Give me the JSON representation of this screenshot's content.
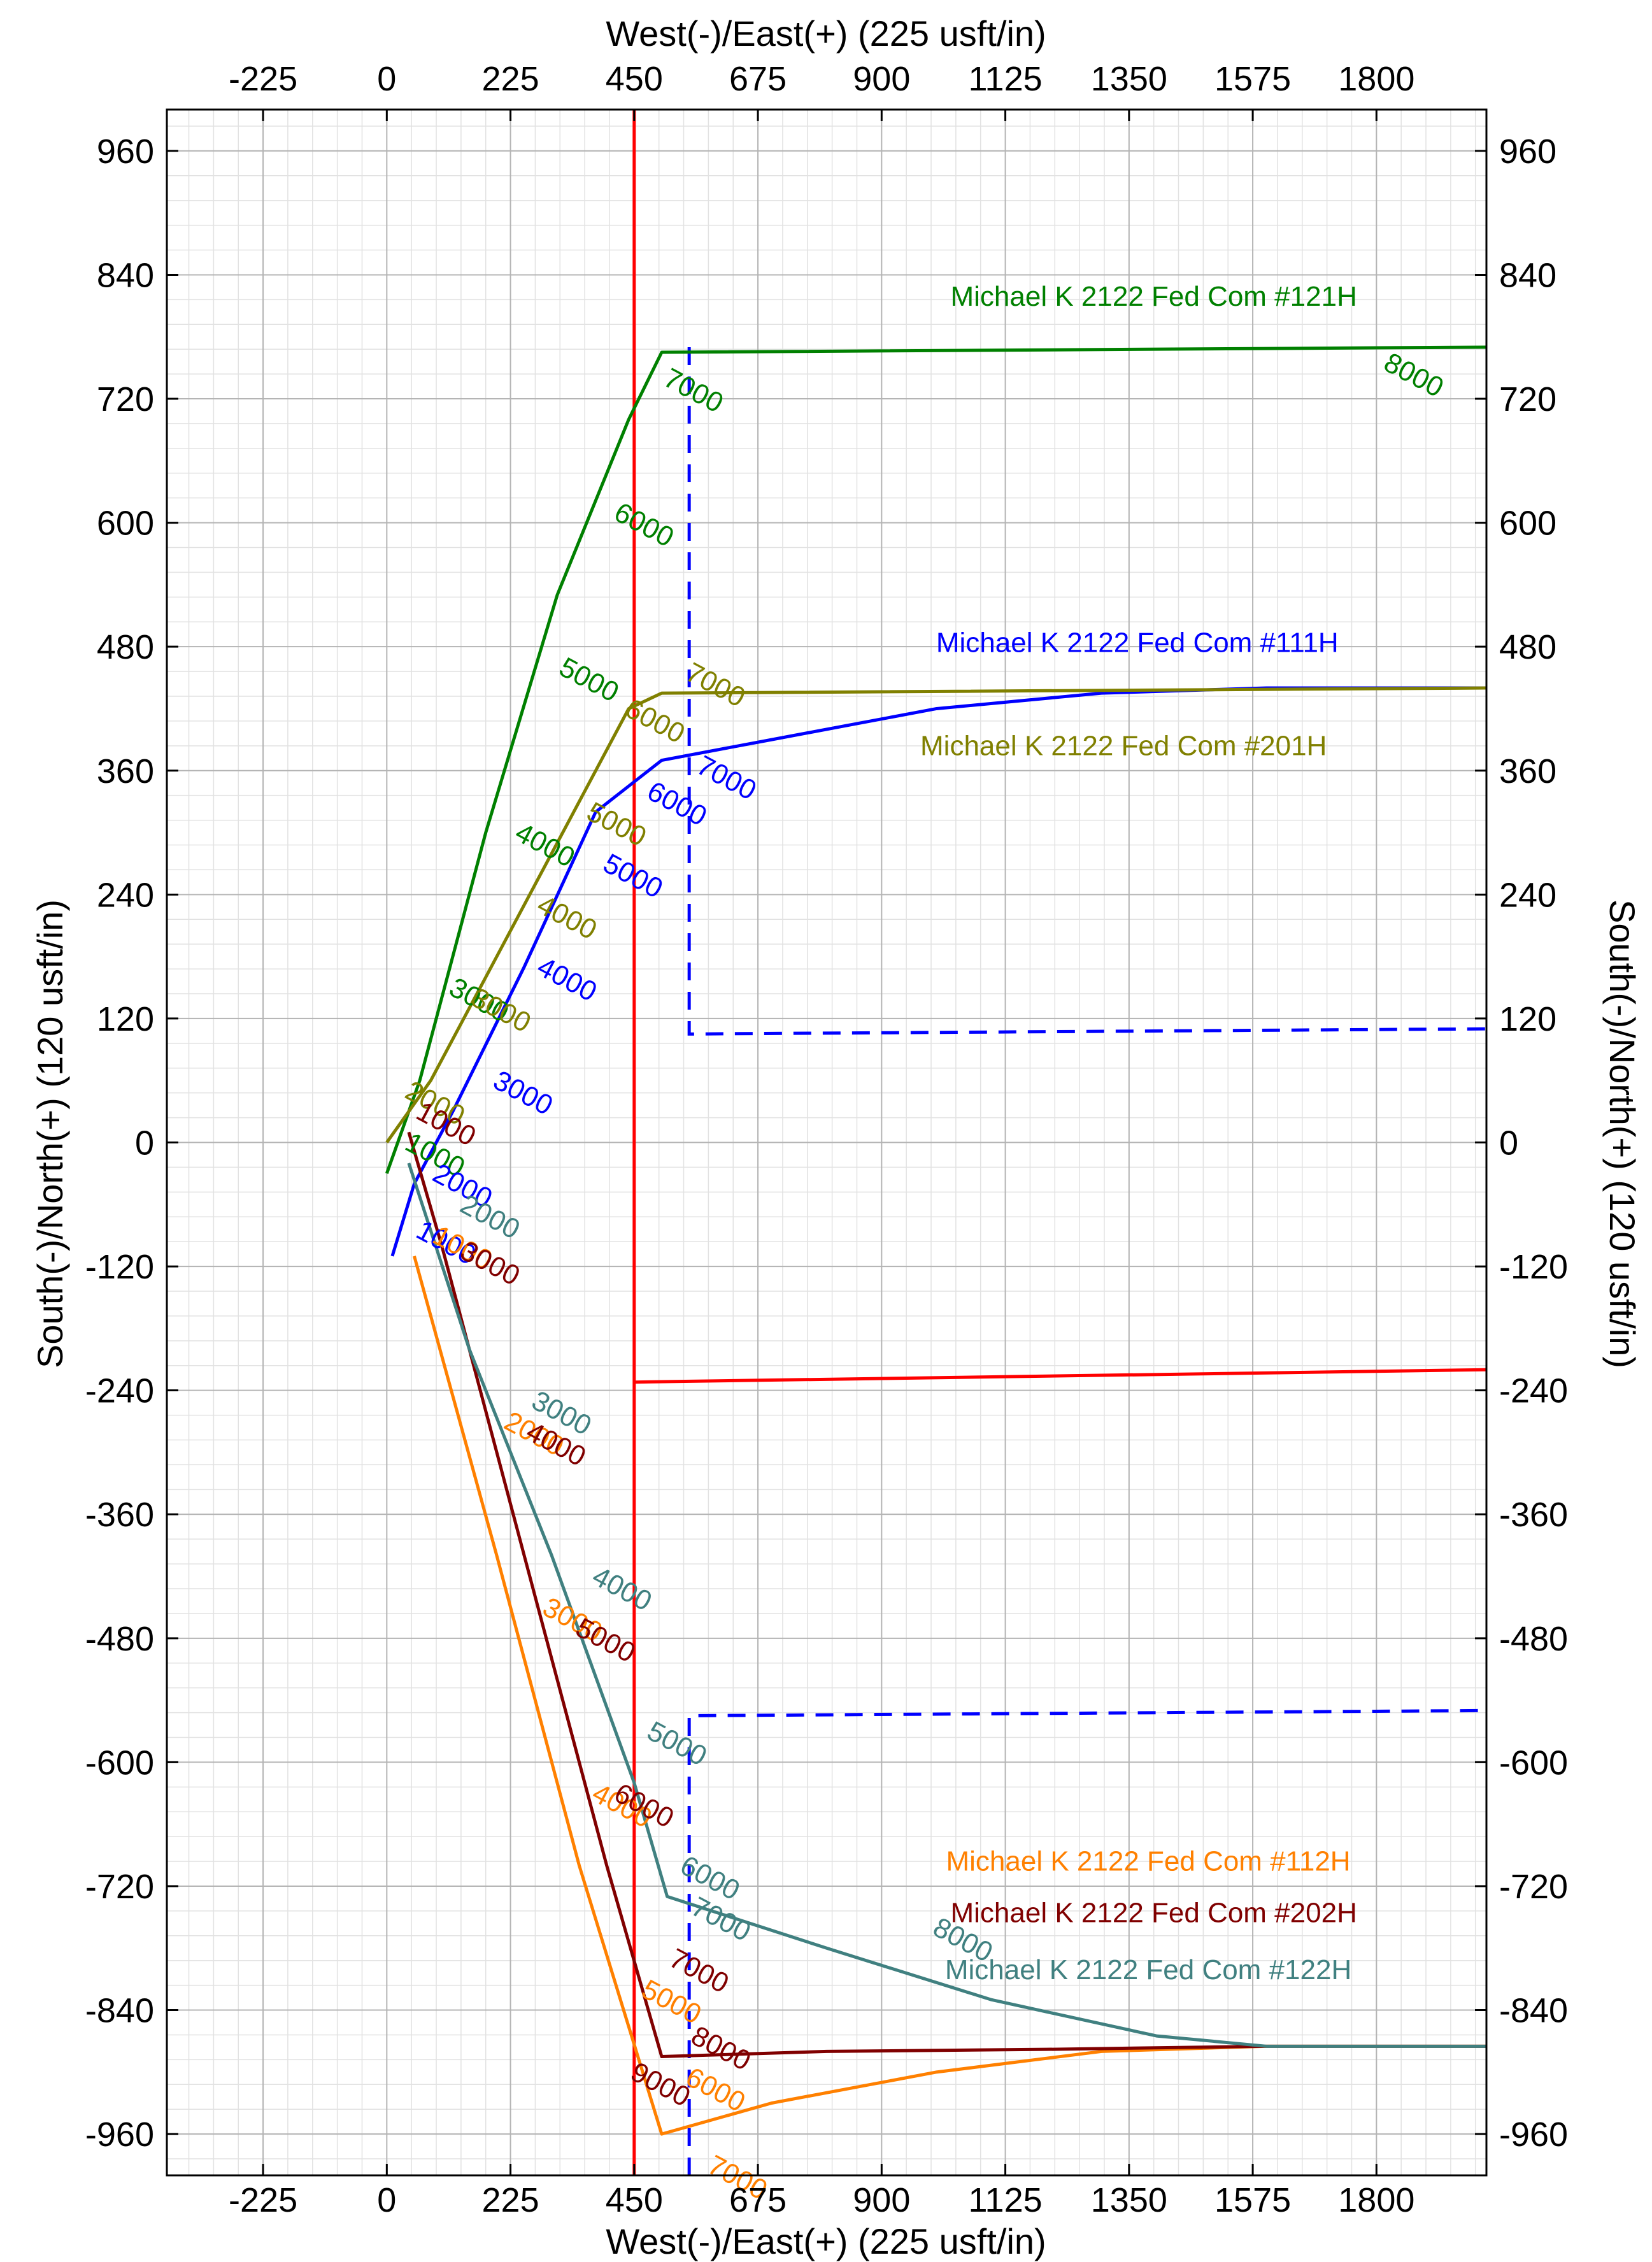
{
  "chart_data": {
    "type": "line",
    "title": "",
    "xlabel_top": "West(-)/East(+) (225 usft/in)",
    "xlabel_bottom": "West(-)/East(+) (225 usft/in)",
    "ylabel_left": "South(-)/North(+) (120 usft/in)",
    "ylabel_right": "South(-)/North(+) (120 usft/in)",
    "xlim": [
      -400,
      2000
    ],
    "ylim": [
      -1000,
      1000
    ],
    "x_ticks": [
      -225,
      0,
      225,
      450,
      675,
      900,
      1125,
      1350,
      1575,
      1800
    ],
    "y_ticks": [
      960,
      840,
      720,
      600,
      480,
      360,
      240,
      120,
      0,
      -120,
      -240,
      -360,
      -480,
      -600,
      -720,
      -840,
      -960
    ],
    "x_tick_labels": [
      "-225",
      "0",
      "225",
      "450",
      "675",
      "900",
      "1125",
      "1350",
      "1575",
      "1800"
    ],
    "y_tick_labels": [
      "960",
      "840",
      "720",
      "600",
      "480",
      "360",
      "240",
      "120",
      "0",
      "-120",
      "-240",
      "-360",
      "-480",
      "-600",
      "-720",
      "-840",
      "-960"
    ],
    "grid": true,
    "series": [
      {
        "name": "Michael K 2122 Fed Com #121H",
        "color": "#008000",
        "x": [
          0,
          20,
          60,
          180,
          310,
          440,
          500,
          2000
        ],
        "y": [
          -30,
          0,
          60,
          300,
          530,
          700,
          765,
          770
        ],
        "md_labels": [
          {
            "text": "1000",
            "x": 80,
            "y": -20
          },
          {
            "text": "3000",
            "x": 160,
            "y": 130
          },
          {
            "text": "4000",
            "x": 280,
            "y": 280
          },
          {
            "text": "5000",
            "x": 360,
            "y": 440
          },
          {
            "text": "6000",
            "x": 460,
            "y": 590
          },
          {
            "text": "7000",
            "x": 550,
            "y": 720
          },
          {
            "text": "8000",
            "x": 1860,
            "y": 735
          }
        ]
      },
      {
        "name": "Michael K 2122 Fed Com #111H",
        "color": "#0000ff",
        "x": [
          10,
          50,
          120,
          250,
          380,
          500,
          700,
          1000,
          1300,
          1600,
          2000
        ],
        "y": [
          -110,
          -40,
          30,
          170,
          320,
          370,
          390,
          420,
          435,
          440,
          440
        ],
        "md_labels": [
          {
            "text": "1000",
            "x": 100,
            "y": -105
          },
          {
            "text": "2000",
            "x": 130,
            "y": -50
          },
          {
            "text": "3000",
            "x": 240,
            "y": 40
          },
          {
            "text": "4000",
            "x": 320,
            "y": 150
          },
          {
            "text": "5000",
            "x": 440,
            "y": 250
          },
          {
            "text": "6000",
            "x": 520,
            "y": 320
          },
          {
            "text": "7000",
            "x": 610,
            "y": 345
          }
        ]
      },
      {
        "name": "Michael K 2122 Fed Com #201H",
        "color": "#808000",
        "x": [
          0,
          80,
          200,
          320,
          440,
          500,
          2000
        ],
        "y": [
          0,
          60,
          180,
          300,
          420,
          435,
          440
        ],
        "md_labels": [
          {
            "text": "2000",
            "x": 80,
            "y": 30
          },
          {
            "text": "3000",
            "x": 200,
            "y": 120
          },
          {
            "text": "4000",
            "x": 320,
            "y": 210
          },
          {
            "text": "5000",
            "x": 410,
            "y": 300
          },
          {
            "text": "6000",
            "x": 480,
            "y": 400
          },
          {
            "text": "7000",
            "x": 590,
            "y": 435
          }
        ]
      },
      {
        "name": "Michael K 2122 Fed Com #112H",
        "color": "#ff8000",
        "x": [
          50,
          200,
          350,
          500,
          700,
          1000,
          1300,
          1600,
          2000
        ],
        "y": [
          -110,
          -400,
          -700,
          -960,
          -930,
          -900,
          -880,
          -875,
          -875
        ],
        "md_labels": [
          {
            "text": "1000",
            "x": 130,
            "y": -110
          },
          {
            "text": "2000",
            "x": 260,
            "y": -290
          },
          {
            "text": "3000",
            "x": 330,
            "y": -470
          },
          {
            "text": "4000",
            "x": 420,
            "y": -650
          },
          {
            "text": "5000",
            "x": 510,
            "y": -840
          },
          {
            "text": "6000",
            "x": 590,
            "y": -925
          },
          {
            "text": "7000",
            "x": 630,
            "y": -1010
          }
        ]
      },
      {
        "name": "Michael K 2122 Fed Com #202H",
        "color": "#800000",
        "x": [
          40,
          100,
          250,
          400,
          500,
          800,
          1200,
          1600,
          2000
        ],
        "y": [
          10,
          -100,
          -400,
          -700,
          -885,
          -880,
          -878,
          -875,
          -875
        ],
        "md_labels": [
          {
            "text": "1000",
            "x": 100,
            "y": 10
          },
          {
            "text": "3000",
            "x": 180,
            "y": -125
          },
          {
            "text": "4000",
            "x": 300,
            "y": -300
          },
          {
            "text": "5000",
            "x": 390,
            "y": -490
          },
          {
            "text": "6000",
            "x": 460,
            "y": -650
          },
          {
            "text": "7000",
            "x": 560,
            "y": -810
          },
          {
            "text": "8000",
            "x": 600,
            "y": -885
          },
          {
            "text": "9000",
            "x": 490,
            "y": -920
          }
        ]
      },
      {
        "name": "Michael K 2122 Fed Com #122H",
        "color": "#408080",
        "x": [
          40,
          150,
          300,
          450,
          510,
          800,
          1100,
          1400,
          1600,
          2000
        ],
        "y": [
          -20,
          -200,
          -400,
          -620,
          -730,
          -780,
          -830,
          -865,
          -875,
          -875
        ],
        "md_labels": [
          {
            "text": "2000",
            "x": 180,
            "y": -80
          },
          {
            "text": "3000",
            "x": 310,
            "y": -270
          },
          {
            "text": "4000",
            "x": 420,
            "y": -440
          },
          {
            "text": "5000",
            "x": 520,
            "y": -590
          },
          {
            "text": "6000",
            "x": 580,
            "y": -720
          },
          {
            "text": "7000",
            "x": 600,
            "y": -760
          },
          {
            "text": "8000",
            "x": 1040,
            "y": -780
          }
        ]
      }
    ],
    "lease_lines": [
      {
        "color": "#ff0000",
        "style": "solid",
        "x": [
          450,
          450
        ],
        "y": [
          1000,
          -1000
        ]
      },
      {
        "color": "#ff0000",
        "style": "solid",
        "x": [
          450,
          2000
        ],
        "y": [
          -232,
          -220
        ]
      },
      {
        "color": "#0000ff",
        "style": "dashed",
        "x": [
          550,
          550,
          2000
        ],
        "y": [
          770,
          105,
          110
        ]
      },
      {
        "color": "#0000ff",
        "style": "dashed",
        "x": [
          550,
          550,
          2000
        ],
        "y": [
          -1000,
          -555,
          -550
        ]
      }
    ],
    "legend_labels": [
      {
        "text": "Michael K 2122 Fed Com #121H",
        "color": "#008000",
        "x": 1395,
        "y": 810
      },
      {
        "text": "Michael K 2122 Fed Com #111H",
        "color": "#0000ff",
        "x": 1365,
        "y": 475
      },
      {
        "text": "Michael K 2122 Fed Com #201H",
        "color": "#808000",
        "x": 1340,
        "y": 375
      },
      {
        "text": "Michael K 2122 Fed Com #112H",
        "color": "#ff8000",
        "x": 1385,
        "y": -705
      },
      {
        "text": "Michael K 2122 Fed Com #202H",
        "color": "#800000",
        "x": 1395,
        "y": -755
      },
      {
        "text": "Michael K 2122 Fed Com #122H",
        "color": "#408080",
        "x": 1385,
        "y": -810
      }
    ]
  }
}
